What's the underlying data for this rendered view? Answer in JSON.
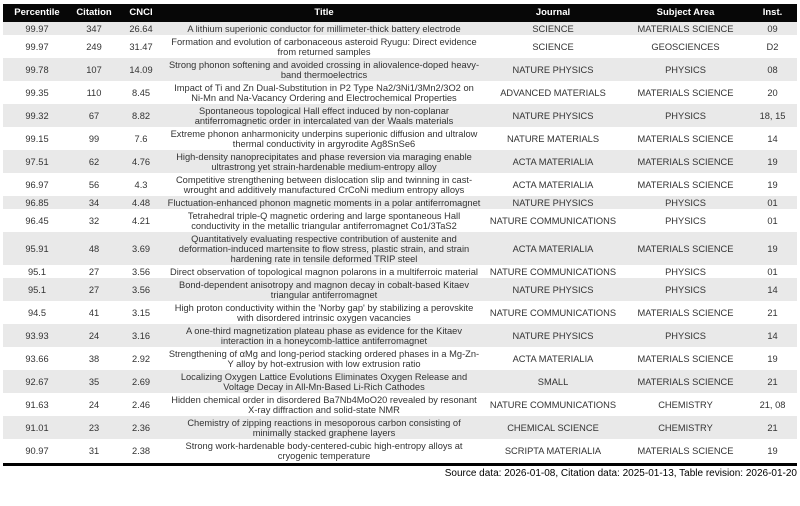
{
  "chart_data": {
    "type": "table",
    "columns": [
      {
        "key": "percentile",
        "label": "Percentile"
      },
      {
        "key": "citation",
        "label": "Citation"
      },
      {
        "key": "cnci",
        "label": "CNCI"
      },
      {
        "key": "title",
        "label": "Title"
      },
      {
        "key": "journal",
        "label": "Journal"
      },
      {
        "key": "subject_area",
        "label": "Subject Area"
      },
      {
        "key": "inst",
        "label": "Inst."
      }
    ],
    "rows": [
      {
        "percentile": "99.97",
        "citation": "347",
        "cnci": "26.64",
        "title": "A lithium superionic conductor for millimeter-thick battery electrode",
        "journal": "SCIENCE",
        "subject_area": "MATERIALS SCIENCE",
        "inst": "09"
      },
      {
        "percentile": "99.97",
        "citation": "249",
        "cnci": "31.47",
        "title": "Formation and evolution of carbonaceous asteroid Ryugu: Direct evidence from returned samples",
        "journal": "SCIENCE",
        "subject_area": "GEOSCIENCES",
        "inst": "D2"
      },
      {
        "percentile": "99.78",
        "citation": "107",
        "cnci": "14.09",
        "title": "Strong phonon softening and avoided crossing in aliovalence-doped heavy-band thermoelectrics",
        "journal": "NATURE PHYSICS",
        "subject_area": "PHYSICS",
        "inst": "08"
      },
      {
        "percentile": "99.35",
        "citation": "110",
        "cnci": "8.45",
        "title": "Impact of Ti and Zn Dual-Substitution in P2 Type Na2/3Ni1/3Mn2/3O2 on Ni-Mn and Na-Vacancy Ordering and Electrochemical Properties",
        "journal": "ADVANCED MATERIALS",
        "subject_area": "MATERIALS SCIENCE",
        "inst": "20"
      },
      {
        "percentile": "99.32",
        "citation": "67",
        "cnci": "8.82",
        "title": "Spontaneous topological Hall effect induced by non-coplanar antiferromagnetic order in intercalated van der Waals materials",
        "journal": "NATURE PHYSICS",
        "subject_area": "PHYSICS",
        "inst": "18, 15"
      },
      {
        "percentile": "99.15",
        "citation": "99",
        "cnci": "7.6",
        "title": "Extreme phonon anharmonicity underpins superionic diffusion and ultralow thermal conductivity in argyrodite Ag8SnSe6",
        "journal": "NATURE MATERIALS",
        "subject_area": "MATERIALS SCIENCE",
        "inst": "14"
      },
      {
        "percentile": "97.51",
        "citation": "62",
        "cnci": "4.76",
        "title": "High-density nanoprecipitates and phase reversion via maraging enable ultrastrong yet strain-hardenable medium-entropy alloy",
        "journal": "ACTA MATERIALIA",
        "subject_area": "MATERIALS SCIENCE",
        "inst": "19"
      },
      {
        "percentile": "96.97",
        "citation": "56",
        "cnci": "4.3",
        "title": "Competitive strengthening between dislocation slip and twinning in cast-wrought and additively manufactured CrCoNi medium entropy alloys",
        "journal": "ACTA MATERIALIA",
        "subject_area": "MATERIALS SCIENCE",
        "inst": "19"
      },
      {
        "percentile": "96.85",
        "citation": "34",
        "cnci": "4.48",
        "title": "Fluctuation-enhanced phonon magnetic moments in a polar antiferromagnet",
        "journal": "NATURE PHYSICS",
        "subject_area": "PHYSICS",
        "inst": "01"
      },
      {
        "percentile": "96.45",
        "citation": "32",
        "cnci": "4.21",
        "title": "Tetrahedral triple-Q magnetic ordering and large spontaneous Hall conductivity in the metallic triangular antiferromagnet Co1/3TaS2",
        "journal": "NATURE COMMUNICATIONS",
        "subject_area": "PHYSICS",
        "inst": "01"
      },
      {
        "percentile": "95.91",
        "citation": "48",
        "cnci": "3.69",
        "title": "Quantitatively evaluating respective contribution of austenite and deformation-induced martensite to flow stress, plastic strain, and strain hardening rate in tensile deformed TRIP steel",
        "journal": "ACTA MATERIALIA",
        "subject_area": "MATERIALS SCIENCE",
        "inst": "19"
      },
      {
        "percentile": "95.1",
        "citation": "27",
        "cnci": "3.56",
        "title": "Direct observation of topological magnon polarons in a multiferroic material",
        "journal": "NATURE COMMUNICATIONS",
        "subject_area": "PHYSICS",
        "inst": "01"
      },
      {
        "percentile": "95.1",
        "citation": "27",
        "cnci": "3.56",
        "title": "Bond-dependent anisotropy and magnon decay in cobalt-based Kitaev triangular antiferromagnet",
        "journal": "NATURE PHYSICS",
        "subject_area": "PHYSICS",
        "inst": "14"
      },
      {
        "percentile": "94.5",
        "citation": "41",
        "cnci": "3.15",
        "title": "High proton conductivity within the 'Norby gap' by stabilizing a perovskite with disordered intrinsic oxygen vacancies",
        "journal": "NATURE COMMUNICATIONS",
        "subject_area": "MATERIALS SCIENCE",
        "inst": "21"
      },
      {
        "percentile": "93.93",
        "citation": "24",
        "cnci": "3.16",
        "title": "A one-third magnetization plateau phase as evidence for the Kitaev interaction in a honeycomb-lattice antiferromagnet",
        "journal": "NATURE PHYSICS",
        "subject_area": "PHYSICS",
        "inst": "14"
      },
      {
        "percentile": "93.66",
        "citation": "38",
        "cnci": "2.92",
        "title": "Strengthening of αMg and long-period stacking ordered phases in a Mg-Zn-Y alloy by hot-extrusion with low extrusion ratio",
        "journal": "ACTA MATERIALIA",
        "subject_area": "MATERIALS SCIENCE",
        "inst": "19"
      },
      {
        "percentile": "92.67",
        "citation": "35",
        "cnci": "2.69",
        "title": "Localizing Oxygen Lattice Evolutions Eliminates Oxygen Release and Voltage Decay in All-Mn-Based Li-Rich Cathodes",
        "journal": "SMALL",
        "subject_area": "MATERIALS SCIENCE",
        "inst": "21"
      },
      {
        "percentile": "91.63",
        "citation": "24",
        "cnci": "2.46",
        "title": "Hidden chemical order in disordered Ba7Nb4MoO20 revealed by resonant X-ray diffraction and solid-state NMR",
        "journal": "NATURE COMMUNICATIONS",
        "subject_area": "CHEMISTRY",
        "inst": "21, 08"
      },
      {
        "percentile": "91.01",
        "citation": "23",
        "cnci": "2.36",
        "title": "Chemistry of zipping reactions in mesoporous carbon consisting of minimally stacked graphene layers",
        "journal": "CHEMICAL SCIENCE",
        "subject_area": "CHEMISTRY",
        "inst": "21"
      },
      {
        "percentile": "90.97",
        "citation": "31",
        "cnci": "2.38",
        "title": "Strong work-hardenable body-centered-cubic high-entropy alloys at cryogenic temperature",
        "journal": "SCRIPTA MATERIALIA",
        "subject_area": "MATERIALS SCIENCE",
        "inst": "19"
      }
    ],
    "layout": {
      "header_style": "black-bar",
      "row_striping": "odd-gray",
      "grid": "off"
    }
  },
  "footer": {
    "text": "Source data: 2026-01-08, Citation data: 2025-01-13, Table revision: 2026-01-20"
  },
  "colors": {
    "header_bg": "#070707",
    "header_text": "#ffffff",
    "row_alt_bg": "#e9e9e9",
    "row_bg": "#ffffff",
    "body_text": "#333333",
    "bottom_rule": "#000000"
  }
}
